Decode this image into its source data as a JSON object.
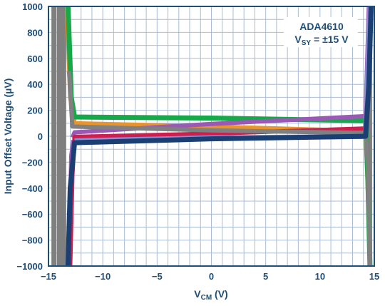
{
  "chart_data": {
    "type": "line",
    "title": "",
    "annotation": {
      "line1": "ADA4610",
      "line2_prefix": "V",
      "line2_sub": "SY",
      "line2_suffix": " = ±15 V"
    },
    "xlabel": {
      "prefix": "V",
      "sub": "CM",
      "suffix": " (V)"
    },
    "ylabel": "Input Offset Voltage (µV)",
    "xlim": [
      -15,
      15
    ],
    "ylim": [
      -1000,
      1000
    ],
    "xticks": [
      -15,
      -10,
      -5,
      0,
      5,
      10,
      15
    ],
    "xtick_labels": [
      "−15",
      "−10",
      "−5",
      "0",
      "5",
      "10",
      "15"
    ],
    "yticks": [
      -1000,
      -800,
      -600,
      -400,
      -200,
      0,
      200,
      400,
      600,
      800,
      1000
    ],
    "ytick_labels": [
      "−1000",
      "−800",
      "−600",
      "−400",
      "−200",
      "0",
      "200",
      "400",
      "600",
      "800",
      "1000"
    ],
    "grid": true,
    "grid_step": {
      "x": 1,
      "y": 100
    },
    "colors": {
      "axis": "#1f4e79",
      "grid": "#a9bcd6",
      "label": "#1f4e79"
    },
    "series": [
      {
        "color": "#7f7f7f",
        "width": 7,
        "points": [
          [
            -14.5,
            -1000
          ],
          [
            -14.5,
            1000
          ]
        ]
      },
      {
        "color": "#7f7f7f",
        "width": 7,
        "points": [
          [
            -14.0,
            -1000
          ],
          [
            -14.0,
            1000
          ]
        ]
      },
      {
        "color": "#7f7f7f",
        "width": 7,
        "points": [
          [
            -13.6,
            -1000
          ],
          [
            -13.6,
            1000
          ]
        ]
      },
      {
        "color": "#7f7f7f",
        "width": 6,
        "points": [
          [
            14.6,
            -1000
          ],
          [
            14.6,
            1000
          ]
        ]
      },
      {
        "color": "#e8952f",
        "width": 6,
        "points": [
          [
            -13.3,
            1000
          ],
          [
            -13.0,
            300
          ],
          [
            -12.6,
            100
          ],
          [
            0,
            75
          ],
          [
            14.2,
            40
          ],
          [
            14.4,
            -400
          ],
          [
            14.6,
            -1000
          ]
        ]
      },
      {
        "color": "#17a84a",
        "width": 7,
        "points": [
          [
            -13.2,
            1000
          ],
          [
            -12.9,
            300
          ],
          [
            -12.6,
            148
          ],
          [
            0,
            140
          ],
          [
            14.2,
            120
          ],
          [
            14.4,
            -300
          ],
          [
            14.6,
            -1000
          ]
        ]
      },
      {
        "color": "#9b59b6",
        "width": 6,
        "points": [
          [
            -12.8,
            -10
          ],
          [
            -12.6,
            30
          ],
          [
            0,
            95
          ],
          [
            14.2,
            155
          ],
          [
            14.5,
            1000
          ]
        ]
      },
      {
        "color": "#9b59b6",
        "width": 6,
        "points": [
          [
            -13.1,
            -1000
          ],
          [
            -12.9,
            -150
          ],
          [
            -12.7,
            -30
          ]
        ]
      },
      {
        "color": "#cc1f4e",
        "width": 6,
        "points": [
          [
            -13.0,
            -1000
          ],
          [
            -12.8,
            -300
          ],
          [
            -12.6,
            -5
          ],
          [
            0,
            20
          ],
          [
            14.2,
            60
          ],
          [
            14.4,
            300
          ],
          [
            14.6,
            1000
          ]
        ]
      },
      {
        "color": "#8c8ed8",
        "width": 7,
        "points": [
          [
            -12.6,
            -35
          ],
          [
            0,
            -12
          ],
          [
            14.2,
            -2
          ],
          [
            14.4,
            500
          ],
          [
            14.6,
            1000
          ]
        ]
      },
      {
        "color": "#808080",
        "width": 6,
        "points": [
          [
            -13.1,
            500
          ],
          [
            -12.8,
            75
          ],
          [
            0,
            45
          ],
          [
            14.2,
            25
          ],
          [
            14.4,
            -200
          ],
          [
            14.6,
            -1000
          ]
        ]
      },
      {
        "color": "#1b3f73",
        "width": 7,
        "points": [
          [
            -13.2,
            -1000
          ],
          [
            -13.0,
            -400
          ],
          [
            -12.6,
            -50
          ],
          [
            0,
            -20
          ],
          [
            14.2,
            0
          ],
          [
            14.5,
            400
          ],
          [
            14.7,
            1000
          ]
        ]
      }
    ]
  }
}
